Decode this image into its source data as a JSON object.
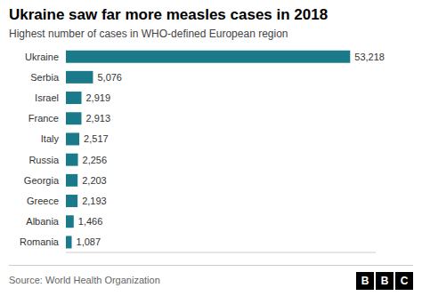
{
  "chart_data": {
    "type": "bar",
    "orientation": "horizontal",
    "title": "Ukraine saw far more measles cases in 2018",
    "subtitle": "Highest number of cases in WHO-defined European region",
    "source": "Source: World Health Organization",
    "annotations": [
      "B",
      "B",
      "C"
    ],
    "categories": [
      "Ukraine",
      "Serbia",
      "Israel",
      "France",
      "Italy",
      "Russia",
      "Georgia",
      "Greece",
      "Albania",
      "Romania"
    ],
    "values": [
      53218,
      5076,
      2919,
      2913,
      2517,
      2256,
      2203,
      2193,
      1466,
      1087
    ],
    "value_labels": [
      "53,218",
      "5,076",
      "2,919",
      "2,913",
      "2,517",
      "2,256",
      "2,203",
      "2,193",
      "1,466",
      "1,087"
    ],
    "color": "#1a7a8a",
    "xlim": [
      0,
      58000
    ],
    "data_labels": true,
    "tick_labels": "y",
    "grid": false
  }
}
